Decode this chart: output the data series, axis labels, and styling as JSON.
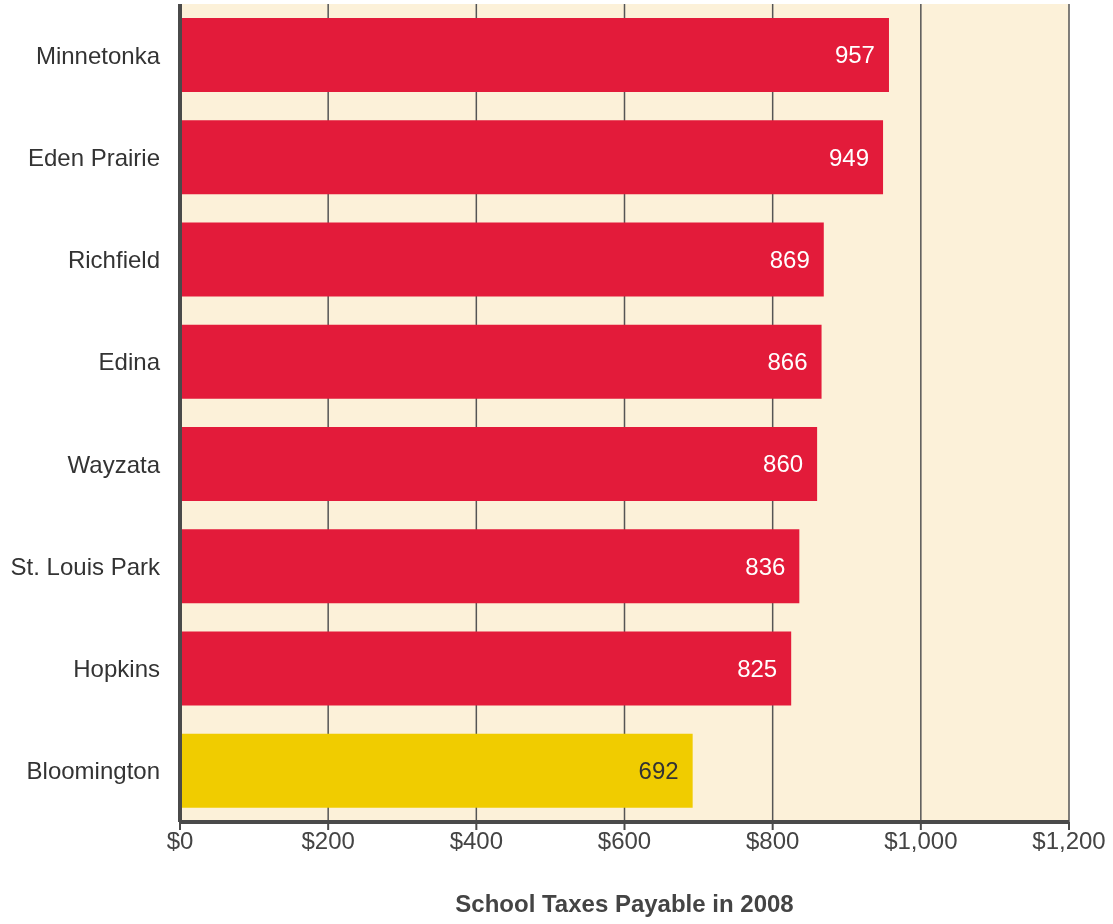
{
  "chart_data": {
    "type": "bar",
    "orientation": "horizontal",
    "xlabel": "School Taxes Payable in 2008",
    "categories": [
      "Minnetonka",
      "Eden Prairie",
      "Richfield",
      "Edina",
      "Wayzata",
      "St. Louis Park",
      "Hopkins",
      "Bloomington"
    ],
    "values": [
      957,
      949,
      869,
      866,
      860,
      836,
      825,
      692
    ],
    "colors": [
      "#e31b3a",
      "#e31b3a",
      "#e31b3a",
      "#e31b3a",
      "#e31b3a",
      "#e31b3a",
      "#e31b3a",
      "#f0cc00"
    ],
    "xlim": [
      0,
      1200
    ],
    "xticks": [
      {
        "value": 0,
        "label": "$0"
      },
      {
        "value": 200,
        "label": "$200"
      },
      {
        "value": 400,
        "label": "$400"
      },
      {
        "value": 600,
        "label": "$600"
      },
      {
        "value": 800,
        "label": "$800"
      },
      {
        "value": 1000,
        "label": "$1,000"
      },
      {
        "value": 1200,
        "label": "$1,200"
      }
    ],
    "grid": "x",
    "data_labels": true
  }
}
